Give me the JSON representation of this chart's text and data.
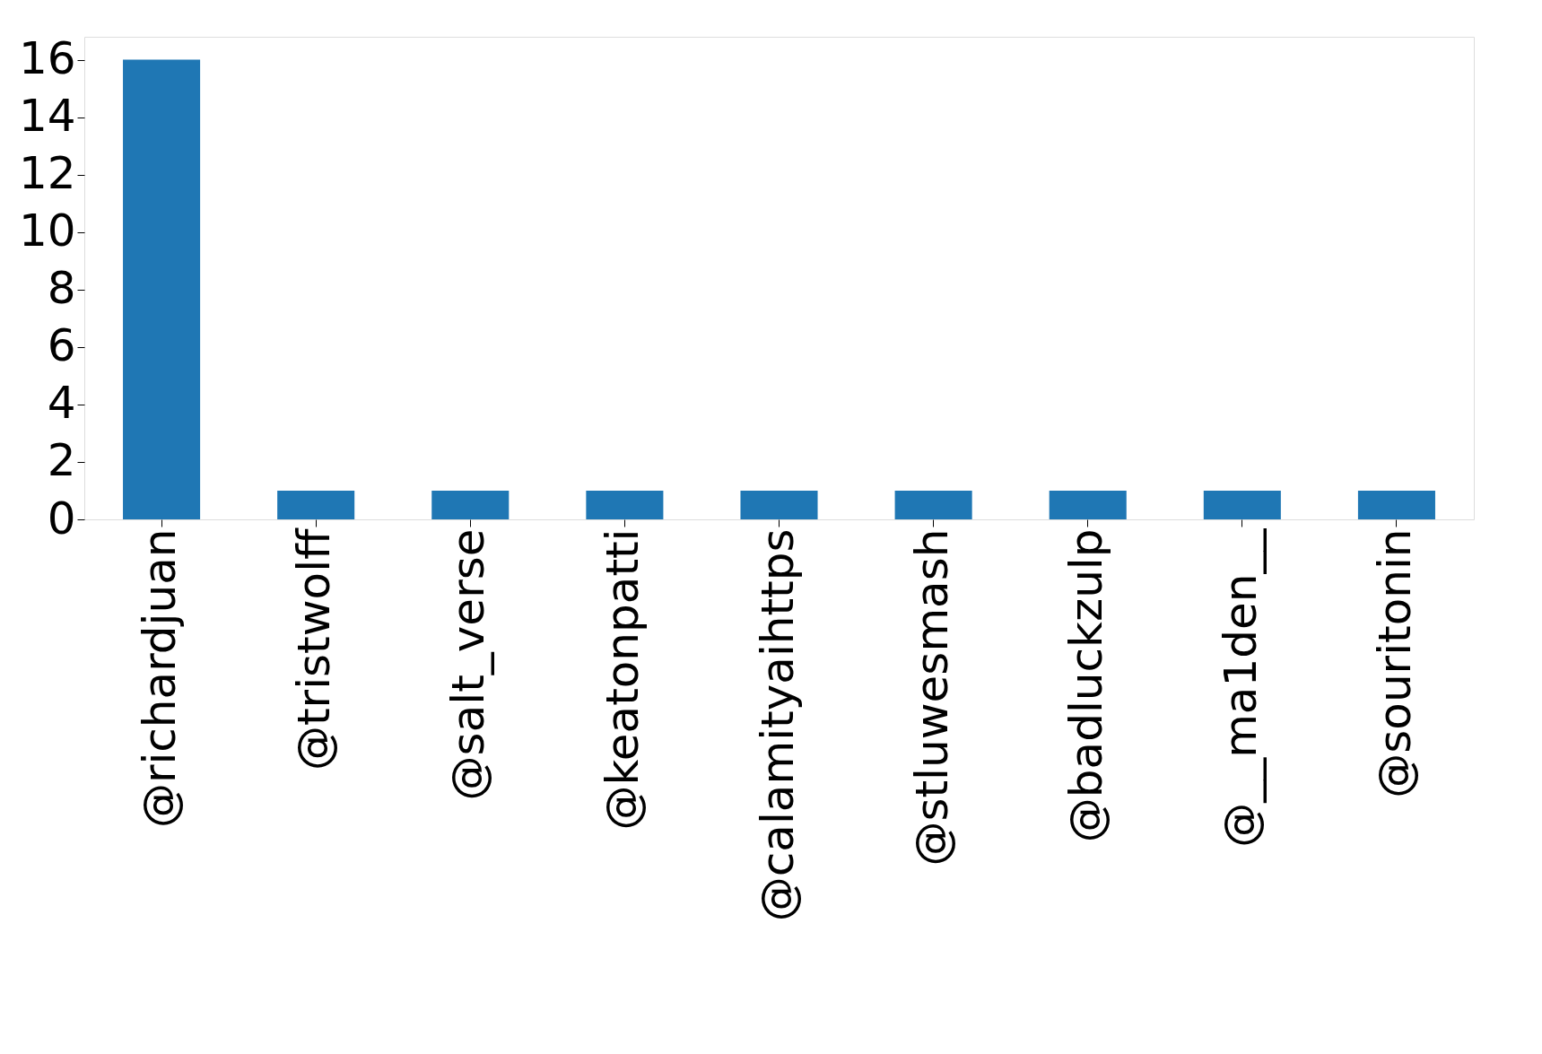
{
  "chart_data": {
    "type": "bar",
    "categories": [
      "@richardjuan",
      "@tristwolff",
      "@salt_verse",
      "@keatonpatti",
      "@calamityaihttps",
      "@stluwesmash",
      "@badluckzulp",
      "@__ma1den__",
      "@souritonin"
    ],
    "values": [
      16,
      1,
      1,
      1,
      1,
      1,
      1,
      1,
      1
    ],
    "color": "#1f77b4",
    "ylim": [
      0,
      16.8
    ],
    "yticks": [
      0,
      2,
      4,
      6,
      8,
      10,
      12,
      14,
      16
    ],
    "grid": false
  }
}
